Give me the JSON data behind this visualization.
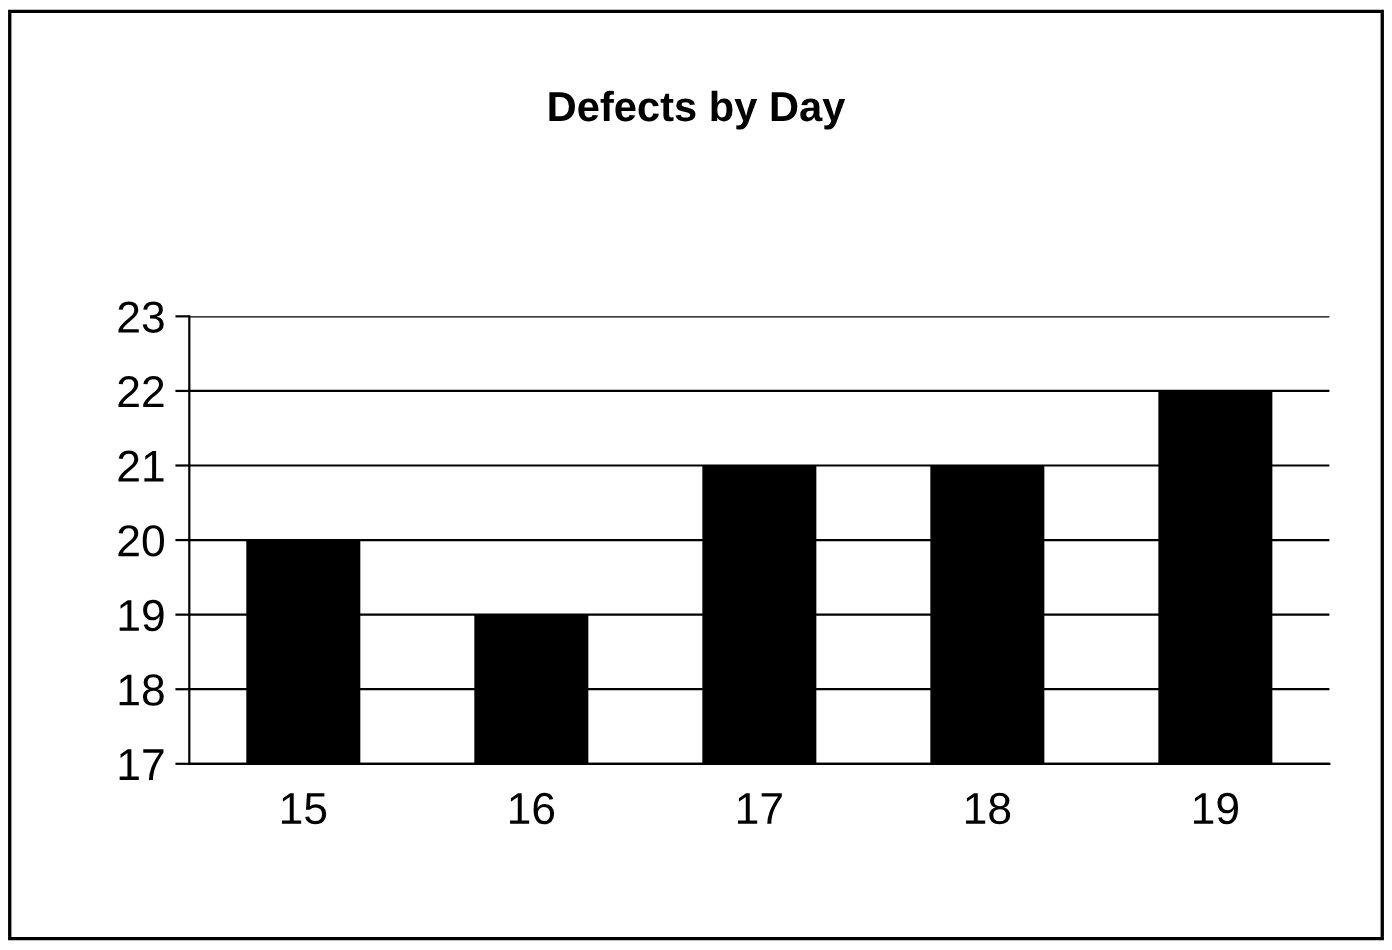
{
  "chart_data": {
    "type": "bar",
    "title": "Defects by Day",
    "categories": [
      "15",
      "16",
      "17",
      "18",
      "19"
    ],
    "values": [
      20,
      19,
      21,
      21,
      22
    ],
    "color": "#000000",
    "ylim": [
      17,
      23
    ],
    "yticks": [
      17,
      18,
      19,
      20,
      21,
      22,
      23
    ],
    "grid": "y",
    "legend": false
  }
}
